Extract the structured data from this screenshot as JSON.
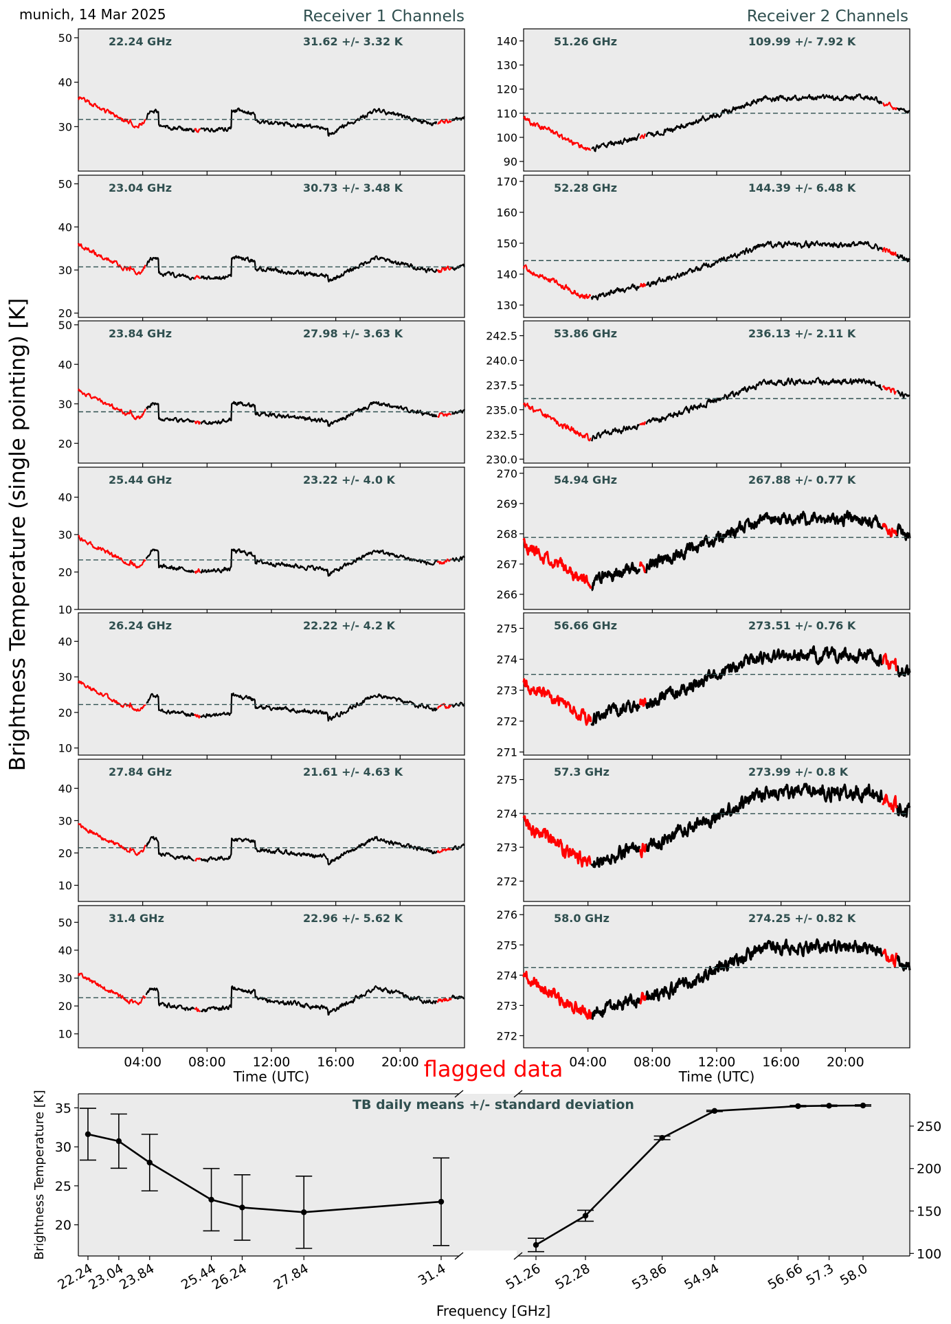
{
  "figure": {
    "location_date": "munich, 14 Mar 2025",
    "left_title": "Receiver 1 Channels",
    "right_title": "Receiver 2 Channels",
    "shared_ylabel": "Brightness Temperature (single pointing) [K]",
    "flag_label": "flagged data",
    "colors": {
      "background": "#ebebeb",
      "data": "#000000",
      "flagged": "#ff0000",
      "annotation": "#2f4f4f",
      "mean_line": "#2f4f4f"
    }
  },
  "chart_data": [
    {
      "type": "line",
      "receiver": 1,
      "channel": "22.24 GHz",
      "stats": "31.62 +/- 3.32 K",
      "mean": 31.62,
      "std": 3.32,
      "ylim": [
        20,
        52
      ],
      "yticks": [
        30,
        40,
        50
      ],
      "ytick_labels": [
        "30",
        "40",
        "50"
      ],
      "xlim": [
        0,
        24
      ],
      "xtick_labels": [],
      "xlabel": "",
      "seed": 1
    },
    {
      "type": "line",
      "receiver": 1,
      "channel": "23.04 GHz",
      "stats": "30.73 +/- 3.48 K",
      "mean": 30.73,
      "std": 3.48,
      "ylim": [
        19,
        52
      ],
      "yticks": [
        20,
        30,
        40,
        50
      ],
      "ytick_labels": [
        "20",
        "30",
        "40",
        "50"
      ],
      "xlim": [
        0,
        24
      ],
      "xtick_labels": [],
      "xlabel": "",
      "seed": 2
    },
    {
      "type": "line",
      "receiver": 1,
      "channel": "23.84 GHz",
      "stats": "27.98 +/- 3.63 K",
      "mean": 27.98,
      "std": 3.63,
      "ylim": [
        15,
        51
      ],
      "yticks": [
        20,
        30,
        40,
        50
      ],
      "ytick_labels": [
        "20",
        "30",
        "40",
        "50"
      ],
      "xlim": [
        0,
        24
      ],
      "xtick_labels": [],
      "xlabel": "",
      "seed": 3
    },
    {
      "type": "line",
      "receiver": 1,
      "channel": "25.44 GHz",
      "stats": "23.22 +/- 4.0 K",
      "mean": 23.22,
      "std": 4.0,
      "ylim": [
        10,
        48
      ],
      "yticks": [
        10,
        20,
        30,
        40
      ],
      "ytick_labels": [
        "10",
        "20",
        "30",
        "40"
      ],
      "xlim": [
        0,
        24
      ],
      "xtick_labels": [],
      "xlabel": "",
      "seed": 4
    },
    {
      "type": "line",
      "receiver": 1,
      "channel": "26.24 GHz",
      "stats": "22.22 +/- 4.2 K",
      "mean": 22.22,
      "std": 4.2,
      "ylim": [
        8,
        48
      ],
      "yticks": [
        10,
        20,
        30,
        40
      ],
      "ytick_labels": [
        "10",
        "20",
        "30",
        "40"
      ],
      "xlim": [
        0,
        24
      ],
      "xtick_labels": [],
      "xlabel": "",
      "seed": 5
    },
    {
      "type": "line",
      "receiver": 1,
      "channel": "27.84 GHz",
      "stats": "21.61 +/- 4.63 K",
      "mean": 21.61,
      "std": 4.63,
      "ylim": [
        5,
        49
      ],
      "yticks": [
        10,
        20,
        30,
        40
      ],
      "ytick_labels": [
        "10",
        "20",
        "30",
        "40"
      ],
      "xlim": [
        0,
        24
      ],
      "xtick_labels": [],
      "xlabel": "",
      "seed": 6
    },
    {
      "type": "line",
      "receiver": 1,
      "channel": "31.4 GHz",
      "stats": "22.96 +/- 5.62 K",
      "mean": 22.96,
      "std": 5.62,
      "ylim": [
        5,
        56
      ],
      "yticks": [
        10,
        20,
        30,
        40,
        50
      ],
      "ytick_labels": [
        "10",
        "20",
        "30",
        "40",
        "50"
      ],
      "xlim": [
        0,
        24
      ],
      "xtick_labels": [
        "04:00",
        "08:00",
        "12:00",
        "16:00",
        "20:00"
      ],
      "xlabel": "Time (UTC)",
      "seed": 7
    },
    {
      "type": "line",
      "receiver": 2,
      "channel": "51.26 GHz",
      "stats": "109.99 +/- 7.92 K",
      "mean": 109.99,
      "std": 7.92,
      "ylim": [
        86,
        145
      ],
      "yticks": [
        90,
        100,
        110,
        120,
        130,
        140
      ],
      "ytick_labels": [
        "90",
        "100",
        "110",
        "120",
        "130",
        "140"
      ],
      "xlim": [
        0,
        24
      ],
      "xtick_labels": [],
      "xlabel": "",
      "seed": 8
    },
    {
      "type": "line",
      "receiver": 2,
      "channel": "52.28 GHz",
      "stats": "144.39 +/- 6.48 K",
      "mean": 144.39,
      "std": 6.48,
      "ylim": [
        126,
        172
      ],
      "yticks": [
        130,
        140,
        150,
        160,
        170
      ],
      "ytick_labels": [
        "130",
        "140",
        "150",
        "160",
        "170"
      ],
      "xlim": [
        0,
        24
      ],
      "xtick_labels": [],
      "xlabel": "",
      "seed": 9
    },
    {
      "type": "line",
      "receiver": 2,
      "channel": "53.86 GHz",
      "stats": "236.13 +/- 2.11 K",
      "mean": 236.13,
      "std": 2.11,
      "ylim": [
        229.6,
        244
      ],
      "yticks": [
        230,
        232.5,
        235,
        237.5,
        240,
        242.5
      ],
      "ytick_labels": [
        "230.0",
        "232.5",
        "235.0",
        "237.5",
        "240.0",
        "242.5"
      ],
      "xlim": [
        0,
        24
      ],
      "xtick_labels": [],
      "xlabel": "",
      "seed": 10
    },
    {
      "type": "scatter",
      "receiver": 2,
      "channel": "54.94 GHz",
      "stats": "267.88 +/- 0.77 K",
      "mean": 267.88,
      "std": 0.77,
      "ylim": [
        265.5,
        270.2
      ],
      "yticks": [
        266,
        267,
        268,
        269,
        270
      ],
      "ytick_labels": [
        "266",
        "267",
        "268",
        "269",
        "270"
      ],
      "xlim": [
        0,
        24
      ],
      "xtick_labels": [],
      "xlabel": "",
      "seed": 11
    },
    {
      "type": "scatter",
      "receiver": 2,
      "channel": "56.66 GHz",
      "stats": "273.51 +/- 0.76 K",
      "mean": 273.51,
      "std": 0.76,
      "ylim": [
        270.9,
        275.5
      ],
      "yticks": [
        271,
        272,
        273,
        274,
        275
      ],
      "ytick_labels": [
        "271",
        "272",
        "273",
        "274",
        "275"
      ],
      "xlim": [
        0,
        24
      ],
      "xtick_labels": [],
      "xlabel": "",
      "seed": 12
    },
    {
      "type": "scatter",
      "receiver": 2,
      "channel": "57.3 GHz",
      "stats": "273.99 +/- 0.8 K",
      "mean": 273.99,
      "std": 0.8,
      "ylim": [
        271.4,
        275.6
      ],
      "yticks": [
        272,
        273,
        274,
        275
      ],
      "ytick_labels": [
        "272",
        "273",
        "274",
        "275"
      ],
      "xlim": [
        0,
        24
      ],
      "xtick_labels": [],
      "xlabel": "",
      "seed": 13
    },
    {
      "type": "scatter",
      "receiver": 2,
      "channel": "58.0 GHz",
      "stats": "274.25 +/- 0.82 K",
      "mean": 274.25,
      "std": 0.82,
      "ylim": [
        271.6,
        276.3
      ],
      "yticks": [
        272,
        273,
        274,
        275,
        276
      ],
      "ytick_labels": [
        "272",
        "273",
        "274",
        "275",
        "276"
      ],
      "xlim": [
        0,
        24
      ],
      "xtick_labels": [
        "04:00",
        "08:00",
        "12:00",
        "16:00",
        "20:00"
      ],
      "xlabel": "Time (UTC)",
      "seed": 14
    },
    {
      "type": "line",
      "title": "TB daily means +/- standard deviation",
      "ylabel": "Brightness Temperature [K]",
      "xlabel": "Frequency [GHz]",
      "receiver1": {
        "x": [
          22.24,
          23.04,
          23.84,
          25.44,
          26.24,
          27.84,
          31.4
        ],
        "x_labels": [
          "22.24",
          "23.04",
          "23.84",
          "25.44",
          "26.24",
          "27.84",
          "31.4"
        ],
        "mean": [
          31.62,
          30.73,
          27.98,
          23.22,
          22.22,
          21.61,
          22.96
        ],
        "std": [
          3.32,
          3.48,
          3.63,
          4.0,
          4.2,
          4.63,
          5.62
        ],
        "ylim": [
          16,
          36.8
        ],
        "yticks": [
          20,
          25,
          30,
          35
        ],
        "ytick_labels": [
          "20",
          "25",
          "30",
          "35"
        ]
      },
      "receiver2": {
        "x": [
          51.26,
          52.28,
          53.86,
          54.94,
          56.66,
          57.3,
          58.0
        ],
        "x_labels": [
          "51.26",
          "52.28",
          "53.86",
          "54.94",
          "56.66",
          "57.3",
          "58.0"
        ],
        "mean": [
          109.99,
          144.39,
          236.13,
          267.88,
          273.51,
          273.99,
          274.25
        ],
        "std": [
          7.92,
          6.48,
          2.11,
          0.77,
          0.76,
          0.8,
          0.82
        ],
        "ylim": [
          97,
          288
        ],
        "yticks": [
          100,
          150,
          200,
          250
        ],
        "ytick_labels": [
          "100",
          "150",
          "200",
          "250"
        ]
      }
    }
  ]
}
